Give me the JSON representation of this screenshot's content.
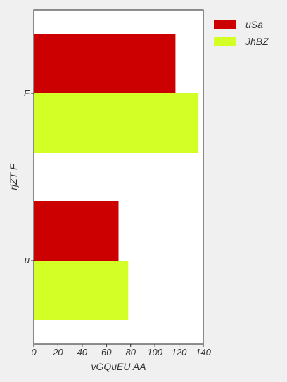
{
  "chart_data": {
    "type": "bar",
    "orientation": "horizontal",
    "categories": [
      "F",
      "u"
    ],
    "series": [
      {
        "name": "uSa",
        "color": "#cc0000",
        "values": [
          117,
          70
        ]
      },
      {
        "name": "JhBZ",
        "color": "#d4ff26",
        "values": [
          136,
          78
        ]
      }
    ],
    "xlabel": "vGQuEU AA",
    "ylabel": "rjZT F",
    "xlim": [
      0,
      140
    ],
    "xticks": [
      0,
      20,
      40,
      60,
      80,
      100,
      120,
      140
    ],
    "grid": false,
    "legend_position": "top-right, outside plot"
  }
}
